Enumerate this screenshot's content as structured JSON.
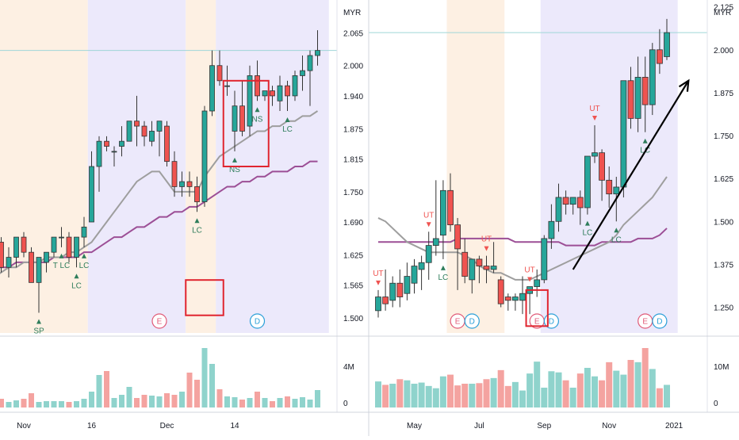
{
  "colors": {
    "up": "#26a69a",
    "down": "#ef5350",
    "sma_fast": "#9e9e9e",
    "sma_slow": "#9c4f96",
    "band_orange": "#fdf0e3",
    "band_purple": "#ece9fb",
    "vol_up": "#8fd3cc",
    "vol_down": "#f4a3a0",
    "arrow": "#000000",
    "highlight_box": "#e0252f",
    "price_line": "#9fd6d8",
    "event_e": "#e05a77",
    "event_d": "#2a9fd8"
  },
  "chart_data": [
    {
      "type": "candlestick",
      "name_hint": "daily",
      "currency": "MYR",
      "ylim": [
        1.47,
        2.13
      ],
      "y_ticks": [
        "2.125",
        "2.065",
        "2.000",
        "1.940",
        "1.875",
        "1.815",
        "1.750",
        "1.690",
        "1.625",
        "1.565",
        "1.500"
      ],
      "x_ticks": [
        "Nov",
        "16",
        "Dec",
        "14"
      ],
      "x_tick_index": [
        4,
        13,
        23,
        32
      ],
      "candles": [
        [
          1.62,
          1.66,
          1.6,
          1.65
        ],
        [
          1.65,
          1.66,
          1.59,
          1.6
        ],
        [
          1.6,
          1.64,
          1.58,
          1.62
        ],
        [
          1.62,
          1.66,
          1.6,
          1.66
        ],
        [
          1.66,
          1.67,
          1.62,
          1.63
        ],
        [
          1.63,
          1.64,
          1.57,
          1.57
        ],
        [
          1.57,
          1.62,
          1.51,
          1.62
        ],
        [
          1.61,
          1.63,
          1.59,
          1.63
        ],
        [
          1.63,
          1.66,
          1.62,
          1.66
        ],
        [
          1.66,
          1.68,
          1.64,
          1.66
        ],
        [
          1.66,
          1.67,
          1.61,
          1.62
        ],
        [
          1.62,
          1.66,
          1.6,
          1.66
        ],
        [
          1.66,
          1.7,
          1.64,
          1.68
        ],
        [
          1.69,
          1.83,
          1.69,
          1.8
        ],
        [
          1.8,
          1.86,
          1.75,
          1.85
        ],
        [
          1.85,
          1.86,
          1.83,
          1.84
        ],
        [
          1.83,
          1.84,
          1.8,
          1.83
        ],
        [
          1.84,
          1.88,
          1.82,
          1.85
        ],
        [
          1.85,
          1.89,
          1.85,
          1.89
        ],
        [
          1.89,
          1.94,
          1.84,
          1.88
        ],
        [
          1.88,
          1.89,
          1.84,
          1.86
        ],
        [
          1.85,
          1.89,
          1.84,
          1.87
        ],
        [
          1.87,
          1.89,
          1.82,
          1.89
        ],
        [
          1.88,
          1.89,
          1.8,
          1.81
        ],
        [
          1.81,
          1.83,
          1.74,
          1.76
        ],
        [
          1.76,
          1.79,
          1.74,
          1.77
        ],
        [
          1.77,
          1.79,
          1.74,
          1.76
        ],
        [
          1.76,
          1.78,
          1.71,
          1.73
        ],
        [
          1.73,
          1.92,
          1.72,
          1.91
        ],
        [
          1.91,
          2.03,
          1.9,
          2.0
        ],
        [
          2.0,
          2.03,
          1.96,
          1.97
        ],
        [
          1.96,
          2.0,
          1.94,
          1.96
        ],
        [
          1.87,
          1.95,
          1.83,
          1.92
        ],
        [
          1.92,
          1.97,
          1.86,
          1.87
        ],
        [
          1.88,
          2.0,
          1.86,
          1.98
        ],
        [
          1.98,
          2.01,
          1.93,
          1.94
        ],
        [
          1.94,
          1.95,
          1.93,
          1.95
        ],
        [
          1.95,
          1.96,
          1.92,
          1.94
        ],
        [
          1.93,
          1.98,
          1.91,
          1.96
        ],
        [
          1.96,
          1.97,
          1.91,
          1.94
        ],
        [
          1.94,
          1.99,
          1.93,
          1.98
        ],
        [
          1.98,
          2.02,
          1.95,
          1.99
        ],
        [
          1.99,
          2.03,
          1.92,
          2.02
        ],
        [
          2.02,
          2.07,
          2.0,
          2.03
        ]
      ],
      "sma_fast": [
        1.58,
        1.59,
        1.6,
        1.6,
        1.61,
        1.61,
        1.61,
        1.62,
        1.62,
        1.62,
        1.63,
        1.63,
        1.64,
        1.65,
        1.67,
        1.69,
        1.71,
        1.73,
        1.75,
        1.77,
        1.78,
        1.79,
        1.79,
        1.77,
        1.75,
        1.75,
        1.75,
        1.75,
        1.78,
        1.8,
        1.82,
        1.83,
        1.84,
        1.85,
        1.86,
        1.87,
        1.87,
        1.88,
        1.88,
        1.89,
        1.89,
        1.9,
        1.9,
        1.91
      ],
      "sma_slow": [
        1.6,
        1.6,
        1.6,
        1.61,
        1.61,
        1.61,
        1.61,
        1.61,
        1.62,
        1.62,
        1.62,
        1.62,
        1.63,
        1.63,
        1.64,
        1.65,
        1.66,
        1.66,
        1.67,
        1.68,
        1.68,
        1.69,
        1.7,
        1.7,
        1.71,
        1.71,
        1.72,
        1.72,
        1.73,
        1.74,
        1.75,
        1.76,
        1.76,
        1.77,
        1.77,
        1.78,
        1.78,
        1.79,
        1.79,
        1.79,
        1.8,
        1.8,
        1.81,
        1.81
      ],
      "volume_axis": [
        "4M",
        "0"
      ],
      "volume": [
        2.0,
        1.1,
        0.7,
        0.9,
        1.1,
        1.8,
        0.7,
        0.8,
        0.8,
        0.8,
        0.7,
        0.8,
        1.1,
        2.0,
        4.1,
        4.6,
        1.2,
        1.6,
        2.6,
        1.2,
        1.6,
        1.5,
        1.4,
        1.8,
        1.6,
        2.0,
        4.4,
        3.5,
        7.5,
        5.5,
        2.3,
        1.4,
        1.3,
        1.0,
        1.2,
        2.0,
        1.2,
        0.8,
        1.2,
        1.4,
        1.1,
        1.3,
        1.0,
        2.2
      ],
      "bands": [
        {
          "from": -1,
          "to": 12,
          "color": "orange"
        },
        {
          "from": 12,
          "to": 25,
          "color": "purple"
        },
        {
          "from": 25,
          "to": 29,
          "color": "orange"
        },
        {
          "from": 29,
          "to": 44,
          "color": "purple"
        }
      ],
      "labels": [
        {
          "i": 12,
          "text": "LC"
        },
        {
          "i": 11,
          "text": "LC"
        },
        {
          "i": 9,
          "text": "T LC"
        },
        {
          "i": 6,
          "text": "SP"
        },
        {
          "i": 27,
          "text": "LC"
        },
        {
          "i": 32,
          "text": "NS"
        },
        {
          "i": 35,
          "text": "NS"
        },
        {
          "i": 39,
          "text": "LC"
        }
      ],
      "events": [
        {
          "i": 22,
          "text": "E"
        },
        {
          "i": 35,
          "text": "D"
        }
      ],
      "annotations": [
        {
          "type": "box",
          "from_i": 31,
          "to_i": 36,
          "y1": 1.97,
          "y2": 1.8
        },
        {
          "type": "box",
          "from_i": 26,
          "to_i": 30,
          "y1": 1.575,
          "y2": 1.505
        }
      ]
    },
    {
      "type": "candlestick",
      "name_hint": "weekly",
      "currency": "MYR",
      "ylim": [
        1.175,
        2.145
      ],
      "y_ticks": [
        "2.125",
        "2.000",
        "1.875",
        "1.750",
        "1.625",
        "1.500",
        "1.375",
        "1.250"
      ],
      "x_ticks": [
        "May",
        "Jul",
        "Sep",
        "Nov",
        "2021"
      ],
      "x_tick_index": [
        5,
        14,
        23,
        32,
        41
      ],
      "candles": [
        [
          1.24,
          1.3,
          1.22,
          1.28
        ],
        [
          1.28,
          1.36,
          1.24,
          1.26
        ],
        [
          1.27,
          1.34,
          1.25,
          1.32
        ],
        [
          1.32,
          1.36,
          1.25,
          1.28
        ],
        [
          1.29,
          1.38,
          1.27,
          1.34
        ],
        [
          1.32,
          1.39,
          1.29,
          1.37
        ],
        [
          1.36,
          1.4,
          1.3,
          1.38
        ],
        [
          1.38,
          1.47,
          1.33,
          1.43
        ],
        [
          1.43,
          1.62,
          1.4,
          1.45
        ],
        [
          1.46,
          1.62,
          1.39,
          1.59
        ],
        [
          1.59,
          1.64,
          1.47,
          1.49
        ],
        [
          1.49,
          1.51,
          1.3,
          1.42
        ],
        [
          1.41,
          1.45,
          1.32,
          1.34
        ],
        [
          1.33,
          1.39,
          1.29,
          1.39
        ],
        [
          1.39,
          1.4,
          1.32,
          1.37
        ],
        [
          1.37,
          1.4,
          1.32,
          1.36
        ],
        [
          1.36,
          1.44,
          1.35,
          1.37
        ],
        [
          1.33,
          1.34,
          1.25,
          1.26
        ],
        [
          1.28,
          1.29,
          1.24,
          1.27
        ],
        [
          1.27,
          1.29,
          1.24,
          1.28
        ],
        [
          1.27,
          1.34,
          1.23,
          1.29
        ],
        [
          1.29,
          1.31,
          1.23,
          1.31
        ],
        [
          1.31,
          1.36,
          1.28,
          1.33
        ],
        [
          1.33,
          1.46,
          1.32,
          1.45
        ],
        [
          1.45,
          1.55,
          1.42,
          1.5
        ],
        [
          1.5,
          1.61,
          1.47,
          1.57
        ],
        [
          1.57,
          1.59,
          1.52,
          1.55
        ],
        [
          1.55,
          1.57,
          1.52,
          1.57
        ],
        [
          1.57,
          1.59,
          1.49,
          1.54
        ],
        [
          1.54,
          1.69,
          1.52,
          1.69
        ],
        [
          1.69,
          1.78,
          1.67,
          1.7
        ],
        [
          1.7,
          1.71,
          1.56,
          1.62
        ],
        [
          1.62,
          1.66,
          1.54,
          1.58
        ],
        [
          1.58,
          1.63,
          1.5,
          1.6
        ],
        [
          1.6,
          1.91,
          1.57,
          1.91
        ],
        [
          1.91,
          1.95,
          1.77,
          1.8
        ],
        [
          1.8,
          1.98,
          1.76,
          1.92
        ],
        [
          1.92,
          1.98,
          1.76,
          1.84
        ],
        [
          1.84,
          2.02,
          1.81,
          2.0
        ],
        [
          2.0,
          2.06,
          1.93,
          1.96
        ],
        [
          1.98,
          2.09,
          1.97,
          2.05
        ]
      ],
      "sma_fast": [
        1.51,
        1.5,
        1.48,
        1.46,
        1.44,
        1.43,
        1.42,
        1.41,
        1.41,
        1.41,
        1.41,
        1.41,
        1.4,
        1.39,
        1.37,
        1.36,
        1.35,
        1.35,
        1.34,
        1.33,
        1.33,
        1.33,
        1.34,
        1.35,
        1.36,
        1.37,
        1.38,
        1.39,
        1.4,
        1.41,
        1.42,
        1.43,
        1.44,
        1.46,
        1.49,
        1.51,
        1.53,
        1.55,
        1.57,
        1.6,
        1.63
      ],
      "sma_slow": [
        1.44,
        1.44,
        1.44,
        1.44,
        1.44,
        1.44,
        1.44,
        1.44,
        1.44,
        1.44,
        1.44,
        1.45,
        1.45,
        1.45,
        1.45,
        1.45,
        1.45,
        1.45,
        1.45,
        1.44,
        1.44,
        1.44,
        1.44,
        1.44,
        1.44,
        1.44,
        1.43,
        1.43,
        1.43,
        1.43,
        1.43,
        1.44,
        1.44,
        1.44,
        1.44,
        1.44,
        1.45,
        1.45,
        1.45,
        1.46,
        1.48
      ],
      "volume_axis": [
        "10M",
        "0"
      ],
      "volume": [
        4.6,
        4.0,
        4.2,
        5.0,
        4.8,
        4.2,
        4.4,
        3.8,
        3.4,
        5.5,
        5.8,
        3.9,
        4.2,
        4.2,
        4.3,
        5.0,
        5.2,
        6.6,
        3.8,
        4.5,
        3.0,
        6.0,
        8.1,
        3.5,
        6.4,
        6.2,
        4.8,
        3.5,
        6.0,
        7.0,
        5.5,
        4.8,
        8.0,
        6.5,
        5.8,
        8.4,
        8.0,
        10.5,
        6.8,
        3.4,
        4.0
      ],
      "bands": [
        {
          "from": 9,
          "to": 17,
          "color": "orange"
        },
        {
          "from": 22,
          "to": 41,
          "color": "purple"
        }
      ],
      "labels": [
        {
          "i": 0,
          "text": "UT",
          "dir": "down",
          "color": "red"
        },
        {
          "i": 7,
          "text": "UT",
          "dir": "down",
          "color": "red"
        },
        {
          "i": 9,
          "text": "LC",
          "dir": "up",
          "color": "green"
        },
        {
          "i": 15,
          "text": "UT",
          "dir": "down",
          "color": "red"
        },
        {
          "i": 21,
          "text": "UT",
          "dir": "down",
          "color": "red"
        },
        {
          "i": 30,
          "text": "UT",
          "dir": "down",
          "color": "red"
        },
        {
          "i": 29,
          "text": "LC",
          "dir": "up",
          "color": "green"
        },
        {
          "i": 33,
          "text": "LC",
          "dir": "up",
          "color": "green"
        },
        {
          "i": 37,
          "text": "LC",
          "dir": "up",
          "color": "green"
        }
      ],
      "events": [
        {
          "i": 11,
          "text": "E"
        },
        {
          "i": 13,
          "text": "D"
        },
        {
          "i": 22,
          "text": "E"
        },
        {
          "i": 24,
          "text": "D"
        },
        {
          "i": 37,
          "text": "E"
        },
        {
          "i": 39,
          "text": "D"
        }
      ],
      "annotations": [
        {
          "type": "box",
          "from_i": 21,
          "to_i": 23,
          "y1": 1.3,
          "y2": 1.195
        },
        {
          "type": "arrow",
          "from_i": 27,
          "from_y": 1.36,
          "to_i": 43,
          "to_y": 1.91
        }
      ]
    }
  ]
}
